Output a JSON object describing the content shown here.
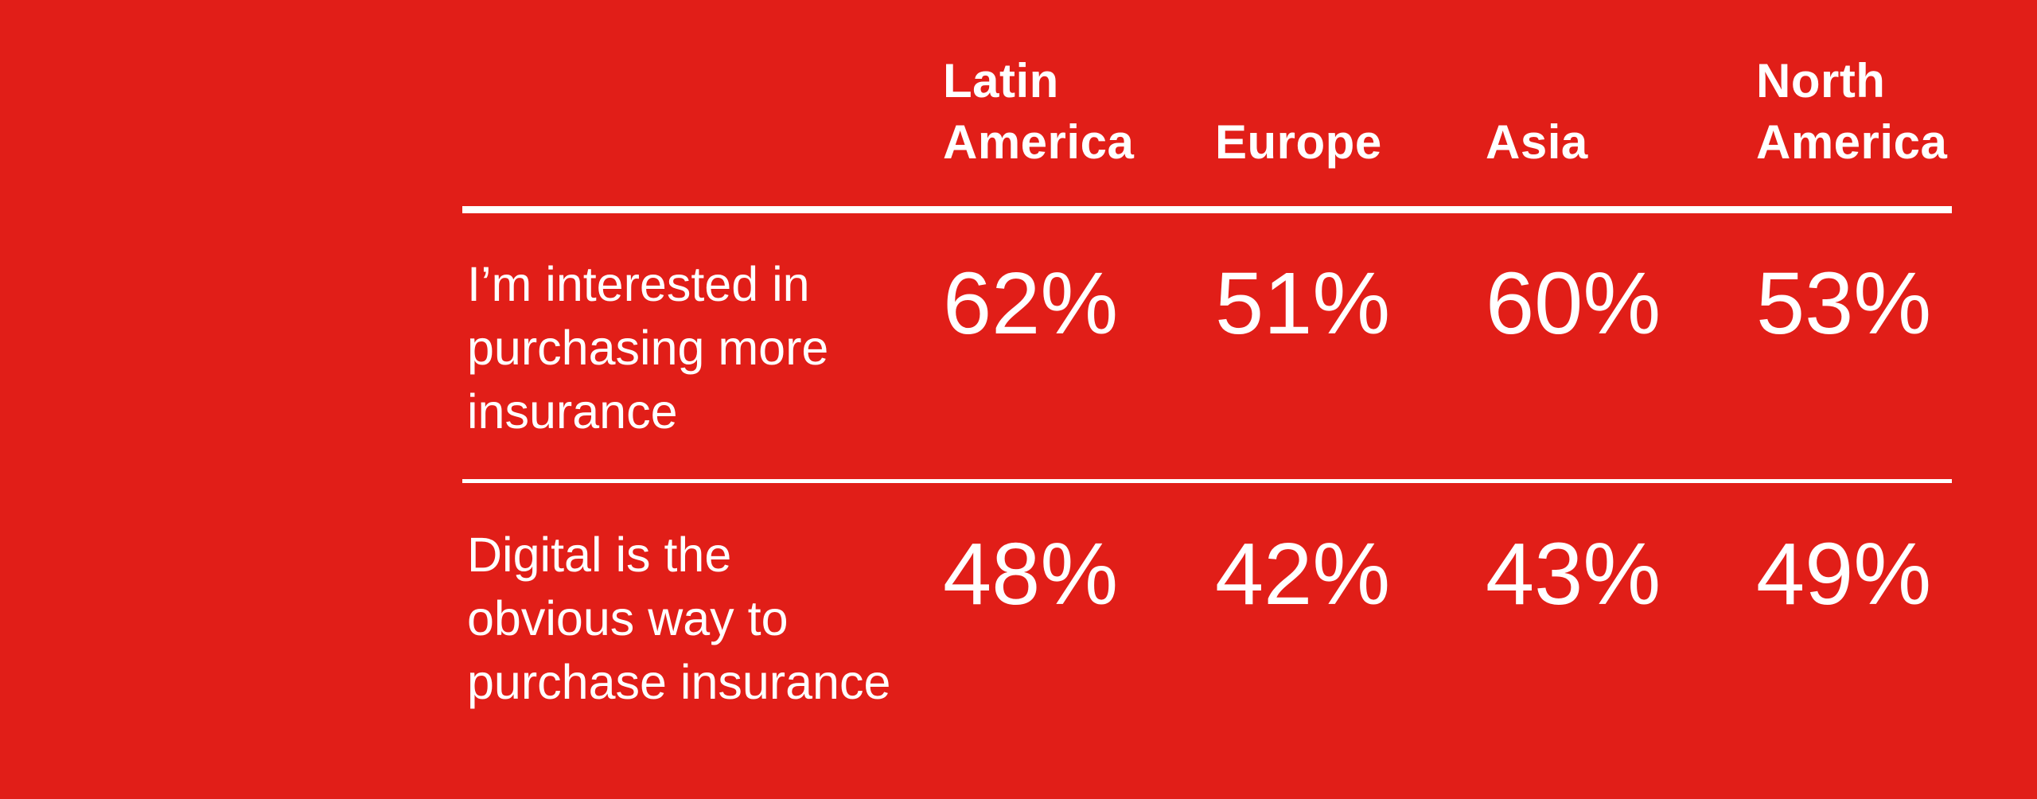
{
  "colors": {
    "background": "#E11E18",
    "text": "#FFFFFF",
    "rule": "#FFFFFF"
  },
  "table": {
    "column_headers": [
      "Latin America",
      "Europe",
      "Asia",
      "North America"
    ],
    "column_header_lines": [
      [
        "Latin",
        "America"
      ],
      [
        "Europe"
      ],
      [
        "Asia"
      ],
      [
        "North",
        "America"
      ]
    ],
    "rows": [
      {
        "label": "I’m interested in purchasing more insurance",
        "label_lines": [
          "I’m interested in",
          "purchasing more",
          "insurance"
        ],
        "values": [
          "62%",
          "51%",
          "60%",
          "53%"
        ]
      },
      {
        "label": "Digital is the obvious way to purchase insurance",
        "label_lines": [
          "Digital is the",
          "obvious way to",
          "purchase insurance"
        ],
        "values": [
          "48%",
          "42%",
          "43%",
          "49%"
        ]
      }
    ]
  },
  "chart_data": {
    "type": "table",
    "categories": [
      "Latin America",
      "Europe",
      "Asia",
      "North America"
    ],
    "series": [
      {
        "name": "I’m interested in purchasing more insurance",
        "values": [
          62,
          51,
          60,
          53
        ],
        "unit": "%"
      },
      {
        "name": "Digital is the obvious way to purchase insurance",
        "values": [
          48,
          42,
          43,
          49
        ],
        "unit": "%"
      }
    ],
    "title": "",
    "legend_position": "none",
    "grid": false
  }
}
